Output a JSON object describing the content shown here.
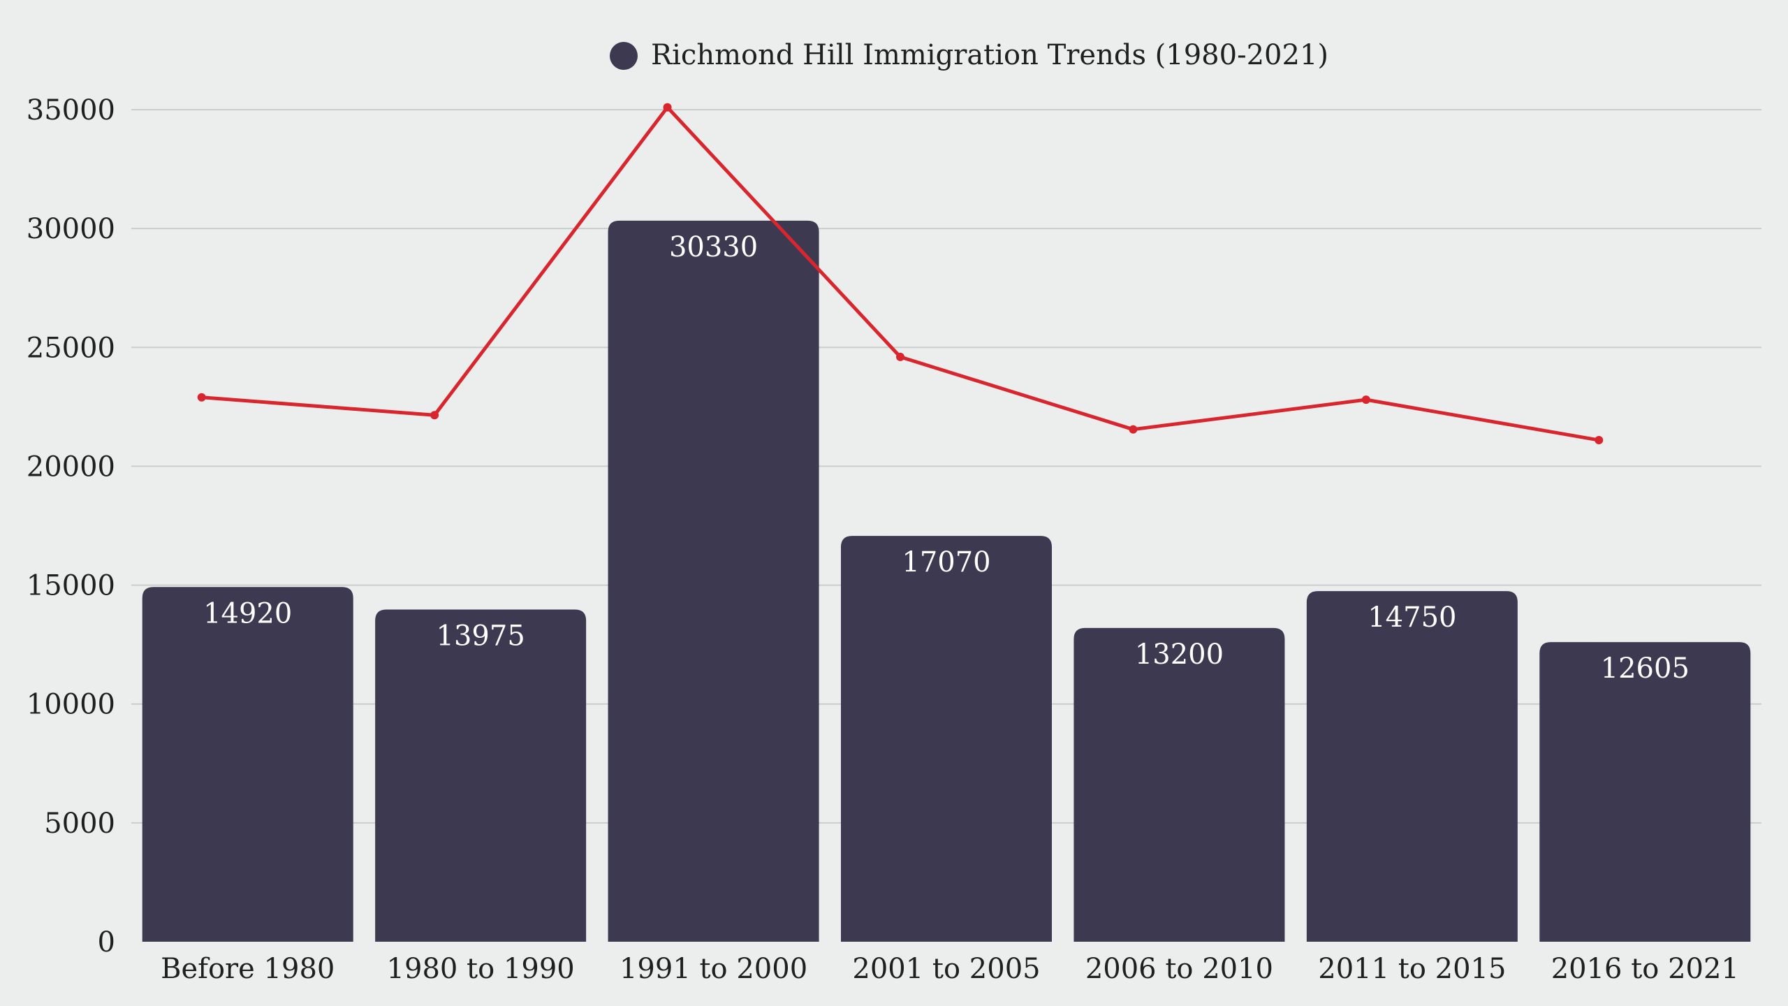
{
  "chart_data": {
    "type": "bar",
    "title": "",
    "xlabel": "",
    "ylabel": "",
    "categories": [
      "Before 1980",
      "1980 to 1990",
      "1991 to 2000",
      "2001 to 2005",
      "2006 to 2010",
      "2011 to 2015",
      "2016 to 2021"
    ],
    "series": [
      {
        "name": "Richmond Hill Immigration Trends (1980-2021)",
        "type": "bar",
        "color": "#3d3950",
        "values": [
          14920,
          13975,
          30330,
          17070,
          13200,
          14750,
          12605
        ],
        "labels": [
          "14920",
          "13975",
          "30330",
          "17070",
          "13200",
          "14750",
          "12605"
        ]
      },
      {
        "type": "line",
        "color": "#d9262e",
        "values": [
          22900,
          22150,
          35100,
          24600,
          21550,
          22800,
          21100
        ]
      }
    ],
    "ylim": [
      0,
      35000
    ],
    "yticks": [
      0,
      5000,
      10000,
      15000,
      20000,
      25000,
      30000,
      35000
    ],
    "ytick_labels": [
      "0",
      "5000",
      "10000",
      "15000",
      "20000",
      "25000",
      "30000",
      "35000"
    ],
    "grid": true,
    "legend": {
      "position": "top-center",
      "entries": [
        "Richmond Hill Immigration Trends (1980-2021)"
      ]
    }
  }
}
